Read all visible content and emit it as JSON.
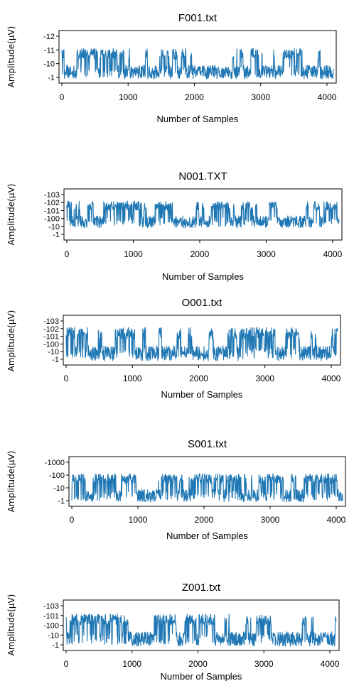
{
  "chart_data": [
    {
      "type": "line",
      "title": "F001.txt",
      "xlabel": "Number of Samples",
      "ylabel": "Amplitude(µV)",
      "xlim": [
        0,
        4097
      ],
      "xticks": [
        0,
        1000,
        2000,
        3000,
        4000
      ],
      "yticklabels": [
        "-1",
        "-10",
        "-11",
        "-12"
      ],
      "series": [
        {
          "color": "#1f77b4",
          "n_samples": 4097,
          "baseline_level": "-1",
          "peak_level": "-11"
        }
      ]
    },
    {
      "type": "line",
      "title": "N001.TXT",
      "xlabel": "Number of Samples",
      "ylabel": "Amplitude(µV)",
      "xlim": [
        0,
        4097
      ],
      "xticks": [
        0,
        1000,
        2000,
        3000,
        4000
      ],
      "yticklabels": [
        "-1",
        "-10",
        "-100",
        "-101",
        "-102",
        "-103"
      ],
      "series": [
        {
          "color": "#1f77b4",
          "n_samples": 4097,
          "baseline_level": "-10",
          "peak_level": "-102"
        }
      ]
    },
    {
      "type": "line",
      "title": "O001.txt",
      "xlabel": "Number of Samples",
      "ylabel": "Amplitude(µV)",
      "xlim": [
        0,
        4097
      ],
      "xticks": [
        0,
        1000,
        2000,
        3000,
        4000
      ],
      "yticklabels": [
        "-1",
        "-10",
        "-100",
        "-101",
        "-102",
        "-103"
      ],
      "series": [
        {
          "color": "#1f77b4",
          "n_samples": 4097,
          "baseline_level": "-1",
          "peak_level": "-102"
        }
      ]
    },
    {
      "type": "line",
      "title": "S001.txt",
      "xlabel": "Number of Samples",
      "ylabel": "Amplitude(µV)",
      "xlim": [
        0,
        4097
      ],
      "xticks": [
        0,
        1000,
        2000,
        3000,
        4000
      ],
      "yticklabels": [
        "-1",
        "-10",
        "-100",
        "-1000"
      ],
      "series": [
        {
          "color": "#1f77b4",
          "n_samples": 4097,
          "baseline_level": "-1",
          "peak_level": "-100"
        }
      ]
    },
    {
      "type": "line",
      "title": "Z001.txt",
      "xlabel": "Number of Samples",
      "ylabel": "Amplitude(µV)",
      "xlim": [
        0,
        4097
      ],
      "xticks": [
        0,
        1000,
        2000,
        3000,
        4000
      ],
      "yticklabels": [
        "-1",
        "-10",
        "-100",
        "-101",
        "-103"
      ],
      "series": [
        {
          "color": "#1f77b4",
          "n_samples": 4097,
          "baseline_level": "-1",
          "peak_level": "-101"
        }
      ]
    }
  ]
}
